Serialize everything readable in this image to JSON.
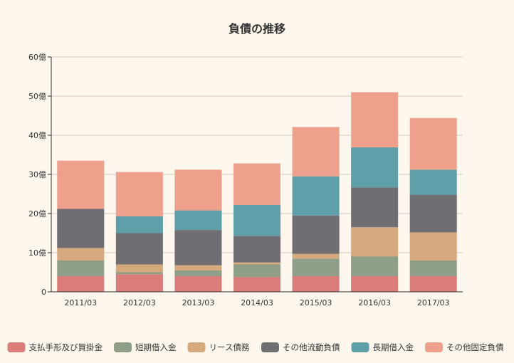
{
  "chart_data": {
    "type": "bar",
    "stacked": true,
    "title": "負債の推移",
    "xlabel": "",
    "ylabel": "",
    "ylim": [
      0,
      60
    ],
    "yticks": [
      0,
      10,
      20,
      30,
      40,
      50,
      60
    ],
    "ytick_labels": [
      "0",
      "10億",
      "20億",
      "30億",
      "40億",
      "50億",
      "60億"
    ],
    "grid": true,
    "legend_position": "bottom",
    "categories": [
      "2011/03",
      "2012/03",
      "2013/03",
      "2014/03",
      "2015/03",
      "2016/03",
      "2017/03"
    ],
    "series": [
      {
        "name": "支払手形及び買掛金",
        "color": "#d97c7a",
        "values": [
          4.0,
          4.5,
          4.0,
          3.8,
          4.0,
          4.0,
          4.0
        ]
      },
      {
        "name": "短期借入金",
        "color": "#8f9e87",
        "values": [
          4.0,
          0.5,
          1.5,
          3.2,
          4.5,
          5.0,
          4.0
        ]
      },
      {
        "name": "リース債務",
        "color": "#d5a87d",
        "values": [
          3.2,
          2.0,
          1.3,
          0.5,
          1.2,
          7.5,
          7.2
        ]
      },
      {
        "name": "その他流動負債",
        "color": "#6f6f73",
        "values": [
          10.0,
          8.0,
          9.0,
          6.8,
          9.8,
          10.2,
          9.6
        ]
      },
      {
        "name": "長期借入金",
        "color": "#5f9fa9",
        "values": [
          0,
          4.3,
          5.0,
          7.9,
          10.0,
          10.2,
          6.4
        ]
      },
      {
        "name": "その他固定負債",
        "color": "#efa08d",
        "values": [
          12.3,
          11.3,
          10.4,
          10.6,
          12.6,
          14.1,
          13.2
        ]
      }
    ]
  }
}
